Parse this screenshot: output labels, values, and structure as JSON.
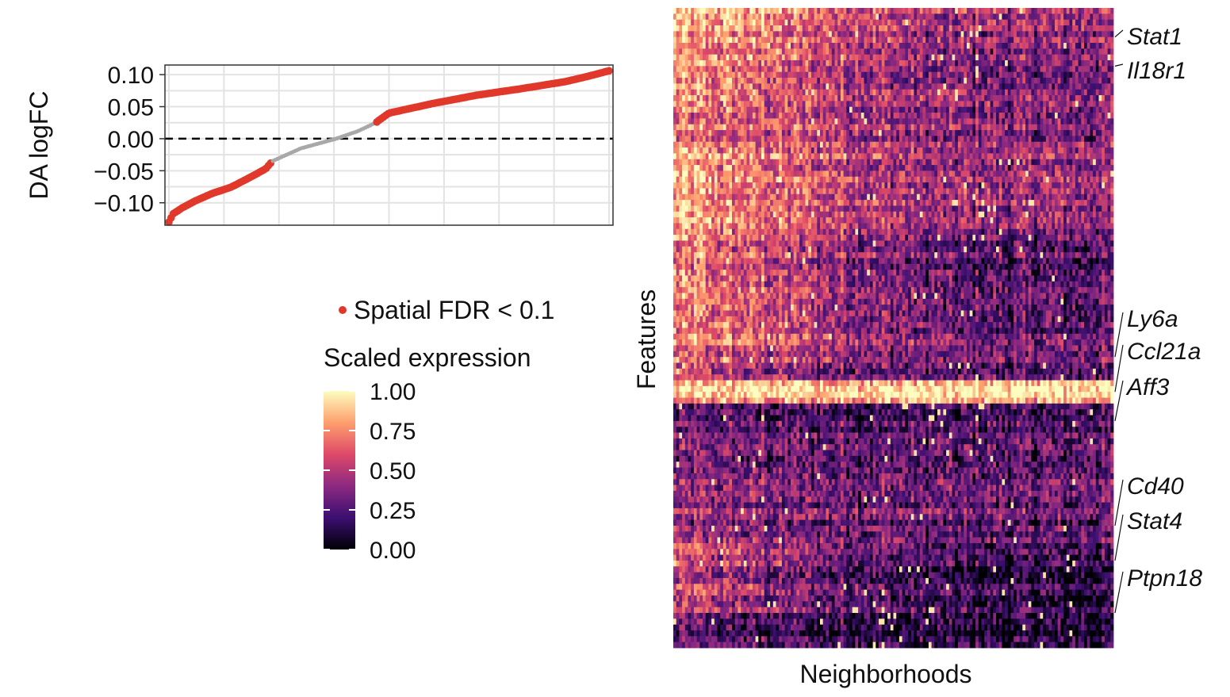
{
  "chart_data": [
    {
      "type": "scatter",
      "ylabel": "DA logFC",
      "xlabel": "",
      "y_ticks": [
        "0.10",
        "0.05",
        "0.00",
        "−0.05",
        "−0.10"
      ],
      "y_tick_values": [
        0.1,
        0.05,
        0.0,
        -0.05,
        -0.1
      ],
      "ylim": [
        -0.135,
        0.115
      ],
      "grid": true,
      "reference_line": 0,
      "point_count": 200,
      "logfc_profile": {
        "rank_fraction": [
          0.0,
          0.01,
          0.03,
          0.06,
          0.1,
          0.14,
          0.18,
          0.22,
          0.235,
          0.3,
          0.38,
          0.43,
          0.47,
          0.5,
          0.6,
          0.7,
          0.8,
          0.9,
          0.95,
          1.0
        ],
        "logfc": [
          -0.13,
          -0.117,
          -0.108,
          -0.097,
          -0.085,
          -0.076,
          -0.062,
          -0.047,
          -0.035,
          -0.015,
          0.0,
          0.012,
          0.025,
          0.04,
          0.055,
          0.068,
          0.078,
          0.089,
          0.097,
          0.106
        ]
      },
      "significant_rank_ranges": [
        [
          0.0,
          0.235
        ],
        [
          0.47,
          1.0
        ]
      ],
      "legend": {
        "marker_label": "Spatial FDR < 0.1",
        "color": "#E0392B"
      },
      "colors": {
        "significant": "#E0392B",
        "not_significant": "#A8A8A8"
      }
    },
    {
      "type": "heatmap",
      "xlabel": "Neighborhoods",
      "ylabel": "Features",
      "n_columns": 150,
      "n_rows": 110,
      "labeled_features": [
        "Stat1",
        "Il18r1",
        "Ly6a",
        "Ccl21a",
        "Aff3",
        "Cd40",
        "Stat4",
        "Ptpn18"
      ],
      "colorbar": {
        "title": "Scaled expression",
        "ticks": [
          "1.00",
          "0.75",
          "0.50",
          "0.25",
          "0.00"
        ],
        "tick_values": [
          1.0,
          0.75,
          0.5,
          0.25,
          0.0
        ],
        "colormap": "magma",
        "stops": [
          "#000004",
          "#3b0f70",
          "#8c2981",
          "#de4968",
          "#fe9f6d",
          "#fcfdbf"
        ]
      },
      "row_blocks": [
        {
          "rows": 4,
          "left": 0.88,
          "right": 0.45
        },
        {
          "rows": 10,
          "left": 0.82,
          "right": 0.4
        },
        {
          "rows": 10,
          "left": 0.7,
          "right": 0.38
        },
        {
          "rows": 14,
          "left": 0.8,
          "right": 0.42
        },
        {
          "rows": 20,
          "left": 0.72,
          "right": 0.28
        },
        {
          "rows": 6,
          "left": 0.6,
          "right": 0.3
        },
        {
          "rows": 4,
          "left": 0.85,
          "right": 0.9
        },
        {
          "rows": 12,
          "left": 0.28,
          "right": 0.22
        },
        {
          "rows": 12,
          "left": 0.4,
          "right": 0.3
        },
        {
          "rows": 12,
          "left": 0.55,
          "right": 0.14
        },
        {
          "rows": 6,
          "left": 0.25,
          "right": 0.08
        }
      ]
    }
  ]
}
